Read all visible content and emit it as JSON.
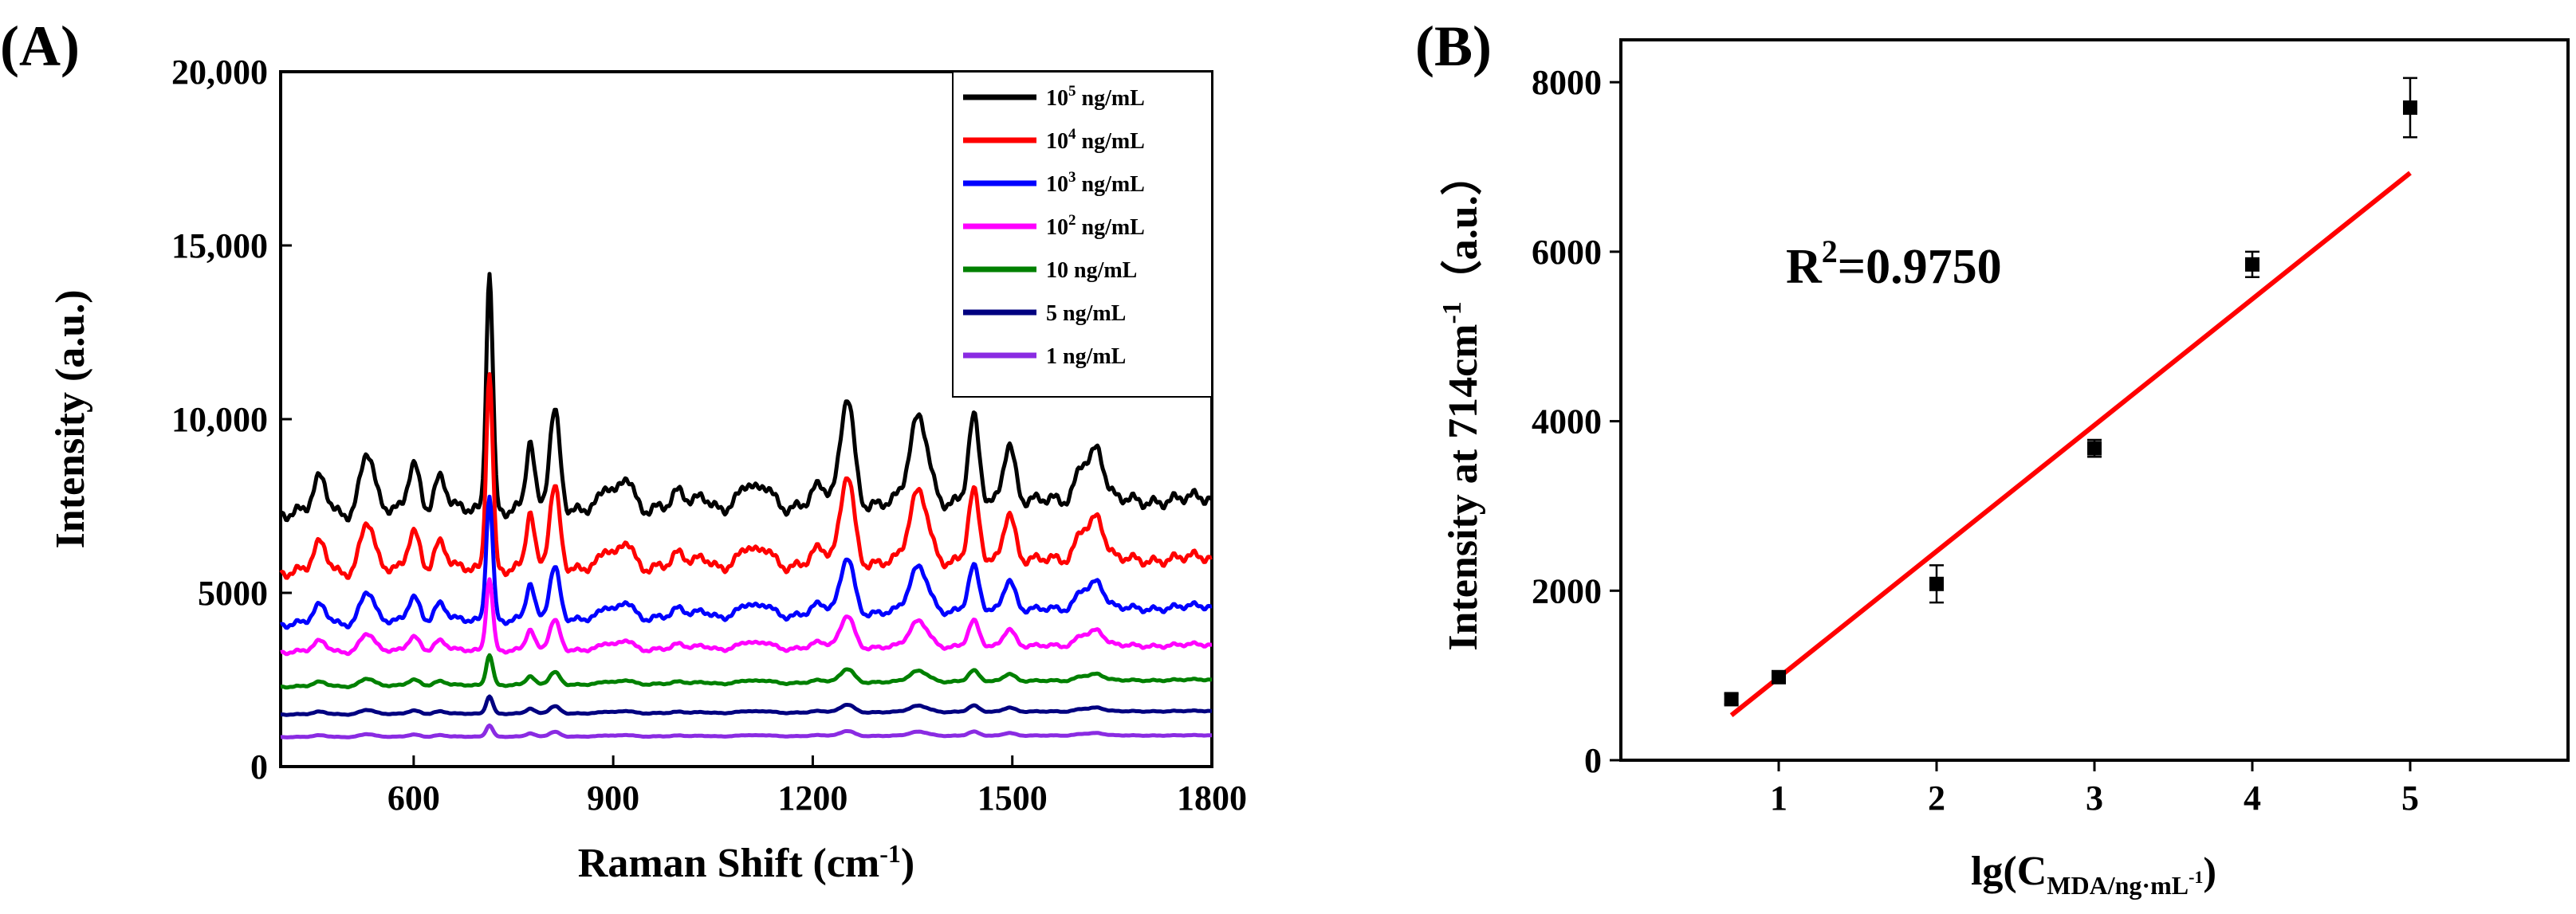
{
  "chart_data": [
    {
      "panel_label": "(A)",
      "type": "line",
      "xlabel": "Raman Shift (cm",
      "xlabel_sup": "-1",
      "xlabel_end": ")",
      "ylabel": "Intensity (a.u.)",
      "xlim": [
        400,
        1800
      ],
      "ylim": [
        0,
        20000
      ],
      "xticks": [
        600,
        900,
        1200,
        1500,
        1800
      ],
      "xtick_labels": [
        "600",
        "900",
        "1200",
        "1500",
        "1800"
      ],
      "yticks": [
        0,
        5000,
        10000,
        15000,
        20000
      ],
      "ytick_labels": [
        "0",
        "5000",
        "10,000",
        "15,000",
        "20,000"
      ],
      "legend": "top-right",
      "peaks": [
        {
          "x": 460,
          "w": 10,
          "a": 0.3
        },
        {
          "x": 530,
          "w": 10,
          "a": 0.55
        },
        {
          "x": 600,
          "w": 9,
          "a": 0.45
        },
        {
          "x": 640,
          "w": 9,
          "a": 0.3
        },
        {
          "x": 714,
          "w": 5,
          "a": 2.2
        },
        {
          "x": 775,
          "w": 6,
          "a": 0.6
        },
        {
          "x": 812,
          "w": 8,
          "a": 0.9
        },
        {
          "x": 890,
          "w": 8,
          "a": 0.18
        },
        {
          "x": 920,
          "w": 10,
          "a": 0.3
        },
        {
          "x": 1000,
          "w": 9,
          "a": 0.12
        },
        {
          "x": 1035,
          "w": 9,
          "a": 0.12
        },
        {
          "x": 1100,
          "w": 10,
          "a": 0.18
        },
        {
          "x": 1130,
          "w": 10,
          "a": 0.18
        },
        {
          "x": 1210,
          "w": 12,
          "a": 0.15
        },
        {
          "x": 1252,
          "w": 10,
          "a": 1.0
        },
        {
          "x": 1360,
          "w": 14,
          "a": 0.8
        },
        {
          "x": 1442,
          "w": 8,
          "a": 0.75
        },
        {
          "x": 1495,
          "w": 9,
          "a": 0.55
        },
        {
          "x": 1605,
          "w": 10,
          "a": 0.35
        },
        {
          "x": 1628,
          "w": 10,
          "a": 0.45
        }
      ],
      "series": [
        {
          "name": "10",
          "sup": "5",
          "unit": " ng/mL",
          "color": "#000000",
          "base_start": 7300,
          "base_end": 7700,
          "scale": 3150
        },
        {
          "name": "10",
          "sup": "4",
          "unit": " ng/mL",
          "color": "#ff0000",
          "base_start": 5600,
          "base_end": 6000,
          "scale": 2600
        },
        {
          "name": "10",
          "sup": "3",
          "unit": " ng/mL",
          "color": "#0000ff",
          "base_start": 4100,
          "base_end": 4600,
          "scale": 1650
        },
        {
          "name": "10",
          "sup": "2",
          "unit": " ng/mL",
          "color": "#ff00ff",
          "base_start": 3300,
          "base_end": 3500,
          "scale": 950
        },
        {
          "name": "10",
          "sup": "",
          "unit": " ng/mL",
          "color": "#008000",
          "base_start": 2300,
          "base_end": 2500,
          "scale": 400
        },
        {
          "name": "5",
          "sup": "",
          "unit": " ng/mL",
          "color": "#000080",
          "base_start": 1500,
          "base_end": 1600,
          "scale": 230
        },
        {
          "name": "1",
          "sup": "",
          "unit": " ng/mL",
          "color": "#8a2be2",
          "base_start": 850,
          "base_end": 900,
          "scale": 150
        }
      ]
    },
    {
      "panel_label": "(B)",
      "type": "scatter",
      "xlabel_prefix": "lg(C",
      "xlabel_sub": "MDA/ng·mL",
      "xlabel_subsup": "-1",
      "xlabel_end": ")",
      "ylabel": "Intensity at 714cm",
      "ylabel_sup": "-1",
      "ylabel_end": "（a.u.）",
      "xlim": [
        0,
        6
      ],
      "ylim": [
        0,
        8500
      ],
      "xticks": [
        1,
        2,
        3,
        4,
        5
      ],
      "xtick_labels": [
        "1",
        "2",
        "3",
        "4",
        "5"
      ],
      "yticks": [
        0,
        2000,
        4000,
        6000,
        8000
      ],
      "ytick_labels": [
        "0",
        "2000",
        "4000",
        "6000",
        "8000"
      ],
      "points": [
        {
          "x": 0.7,
          "y": 720,
          "err": 60
        },
        {
          "x": 1.0,
          "y": 980,
          "err": 50
        },
        {
          "x": 2.0,
          "y": 2080,
          "err": 220
        },
        {
          "x": 3.0,
          "y": 3680,
          "err": 100
        },
        {
          "x": 4.0,
          "y": 5850,
          "err": 150
        },
        {
          "x": 5.0,
          "y": 7700,
          "err": 350
        }
      ],
      "fit": {
        "x1": 0.7,
        "y1": 530,
        "x2": 5.0,
        "y2": 6930,
        "color": "#ff0000"
      },
      "annotation": {
        "prefix": "R",
        "sup": "2",
        "suffix": "=0.9750"
      }
    }
  ]
}
